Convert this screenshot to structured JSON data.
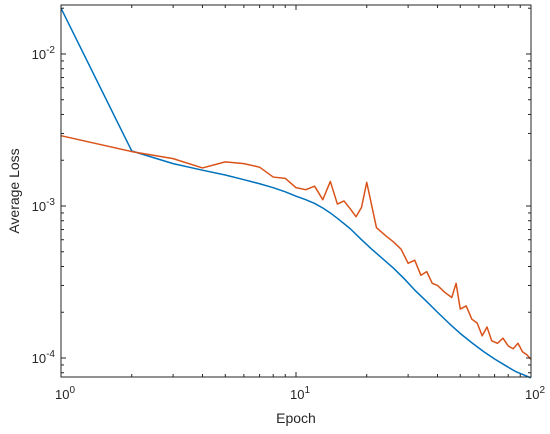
{
  "chart_data": {
    "type": "line",
    "title": "",
    "xlabel": "Epoch",
    "ylabel": "Average Loss",
    "xscale": "log",
    "yscale": "log",
    "xlim": [
      1,
      100
    ],
    "ylim": [
      7.5e-05,
      0.021
    ],
    "grid": false,
    "box": true,
    "x_ticks": [
      {
        "value": 1,
        "base": "10",
        "exp": "0"
      },
      {
        "value": 10,
        "base": "10",
        "exp": "1"
      },
      {
        "value": 100,
        "base": "10",
        "exp": "2"
      }
    ],
    "y_ticks": [
      {
        "value": 0.0001,
        "base": "10",
        "exp": "-4"
      },
      {
        "value": 0.001,
        "base": "10",
        "exp": "-3"
      },
      {
        "value": 0.01,
        "base": "10",
        "exp": "-2"
      }
    ],
    "series": [
      {
        "color": "#0072BD",
        "points": [
          [
            1,
            0.02
          ],
          [
            2,
            0.0023
          ],
          [
            3,
            0.0019
          ],
          [
            4,
            0.00172
          ],
          [
            5,
            0.0016
          ],
          [
            6,
            0.00149
          ],
          [
            7,
            0.0014
          ],
          [
            8,
            0.00132
          ],
          [
            9,
            0.00124
          ],
          [
            10,
            0.00116
          ],
          [
            11,
            0.0011
          ],
          [
            12,
            0.00104
          ],
          [
            13,
            0.00097
          ],
          [
            14,
            0.0009
          ],
          [
            15,
            0.00083
          ],
          [
            17,
            0.00071
          ],
          [
            19,
            0.0006
          ],
          [
            21,
            0.00052
          ],
          [
            23,
            0.00046
          ],
          [
            26,
            0.00039
          ],
          [
            29,
            0.00033
          ],
          [
            32,
            0.00028
          ],
          [
            36,
            0.000235
          ],
          [
            40,
            0.0002
          ],
          [
            45,
            0.000168
          ],
          [
            50,
            0.000145
          ],
          [
            56,
            0.000126
          ],
          [
            63,
            0.00011
          ],
          [
            70,
            9.85e-05
          ],
          [
            78,
            8.9e-05
          ],
          [
            86,
            8.15e-05
          ],
          [
            93,
            7.75e-05
          ],
          [
            100,
            7.4e-05
          ]
        ]
      },
      {
        "color": "#D95319",
        "points": [
          [
            1,
            0.0029
          ],
          [
            2,
            0.00228
          ],
          [
            3,
            0.00205
          ],
          [
            4,
            0.00178
          ],
          [
            5,
            0.00195
          ],
          [
            6,
            0.0019
          ],
          [
            7,
            0.0018
          ],
          [
            8,
            0.00155
          ],
          [
            9,
            0.00152
          ],
          [
            10,
            0.00132
          ],
          [
            11,
            0.00128
          ],
          [
            12,
            0.00135
          ],
          [
            13,
            0.0011
          ],
          [
            14,
            0.00145
          ],
          [
            15,
            0.00103
          ],
          [
            16,
            0.00108
          ],
          [
            17,
            0.00096
          ],
          [
            18,
            0.00085
          ],
          [
            19,
            0.00098
          ],
          [
            20,
            0.00143
          ],
          [
            22,
            0.00072
          ],
          [
            24,
            0.00064
          ],
          [
            26,
            0.00058
          ],
          [
            28,
            0.00052
          ],
          [
            30,
            0.00042
          ],
          [
            32,
            0.00044
          ],
          [
            34,
            0.00035
          ],
          [
            36,
            0.00037
          ],
          [
            38,
            0.00031
          ],
          [
            40,
            0.0003
          ],
          [
            43,
            0.00027
          ],
          [
            46,
            0.00025
          ],
          [
            48,
            0.00031
          ],
          [
            50,
            0.00021
          ],
          [
            53,
            0.00022
          ],
          [
            56,
            0.00018
          ],
          [
            59,
            0.00017
          ],
          [
            62,
            0.00014
          ],
          [
            65,
            0.00016
          ],
          [
            68,
            0.00013
          ],
          [
            72,
            0.000125
          ],
          [
            76,
            0.000135
          ],
          [
            80,
            0.00012
          ],
          [
            84,
            0.000115
          ],
          [
            88,
            0.000125
          ],
          [
            92,
            0.00011
          ],
          [
            96,
            0.000105
          ],
          [
            100,
            9.8e-05
          ]
        ]
      }
    ]
  }
}
